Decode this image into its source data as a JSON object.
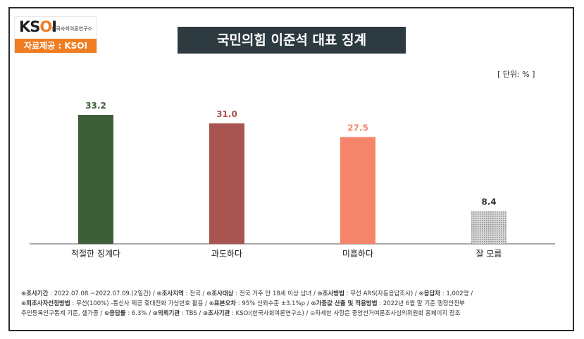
{
  "logo": {
    "mark_k": "K",
    "mark_s": "S",
    "mark_o": "O",
    "mark_i": "I",
    "org_name": "한국사회여론연구소",
    "source": "자료제공 : KSOI"
  },
  "title": "국민의힘 이준석 대표 징계",
  "unit": "[ 단위: % ]",
  "colors": {
    "bar1": "#3e5e37",
    "bar2": "#a85450",
    "bar3": "#f5856a",
    "bar4": "#c8c8c8",
    "title_bg": "#2d3a40",
    "accent": "#ef7d22"
  },
  "chart_data": {
    "type": "bar",
    "categories": [
      "적절한 징계다",
      "과도하다",
      "미흡하다",
      "잘 모름"
    ],
    "values": [
      33.2,
      31.0,
      27.5,
      8.4
    ],
    "value_labels": [
      "33.2",
      "31.0",
      "27.5",
      "8.4"
    ],
    "title": "국민의힘 이준석 대표 징계",
    "xlabel": "",
    "ylabel": "",
    "ylim": [
      0,
      40
    ],
    "grid": false,
    "legend": "none"
  },
  "notes": {
    "line1": [
      {
        "k": "⊙조사기간",
        "v": " : 2022.07.08.~2022.07.09.(2일간) / "
      },
      {
        "k": "⊙조사지역",
        "v": " : 전국 / "
      },
      {
        "k": "⊙조사대상",
        "v": " : 전국 거주 만 18세 이상 남녀 / "
      },
      {
        "k": "⊙조사방법",
        "v": " : 무선 ARS(자동응답조사) / "
      },
      {
        "k": "⊙응답자",
        "v": " : 1,002명 /"
      }
    ],
    "line2": [
      {
        "k": "⊙피조사자선정방법",
        "v": " : 무선(100%) -통신사 제공 휴대전화 가상번호 활용 / "
      },
      {
        "k": "⊙표본오차",
        "v": " : 95% 신뢰수준 ±3.1%p / "
      },
      {
        "k": "⊙가중값 산출 및 적용방법",
        "v": " : 2022년 6월 말 기준 행정안전부"
      }
    ],
    "line3": [
      {
        "k": "",
        "v": "주민등록인구통계 기준, 셀가중 / "
      },
      {
        "k": "⊙응답률",
        "v": " : 6.3% / "
      },
      {
        "k": "⊙의뢰기관",
        "v": " : TBS / "
      },
      {
        "k": "⊙조사기관",
        "v": " : KSOI(한국사회여론연구소) / "
      },
      {
        "k": "",
        "v": "⊙자세한 사항은 중앙선거여론조사심의위원회 홈페이지 참조"
      }
    ]
  }
}
